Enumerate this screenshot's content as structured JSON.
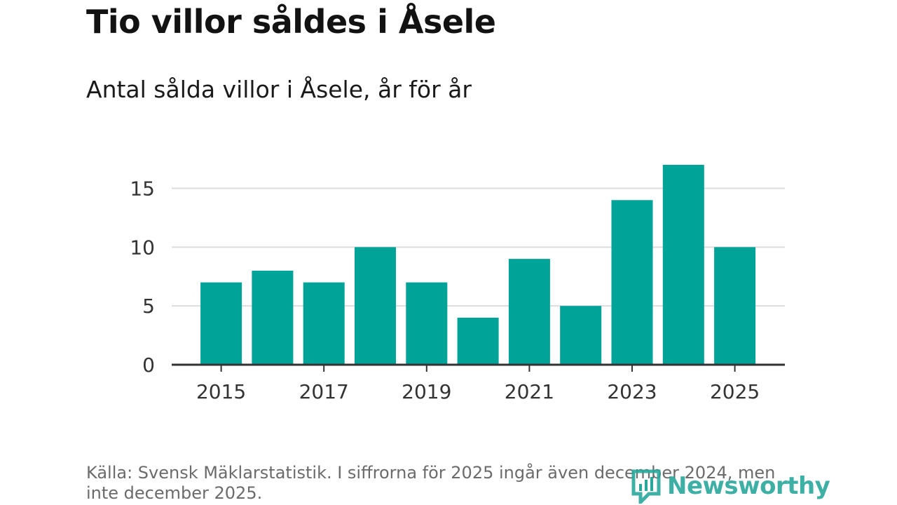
{
  "header": {
    "title": "Tio villor såldes i Åsele",
    "subtitle": "Antal sålda villor i Åsele, år för år"
  },
  "footer": {
    "source": "Källa: Svensk Mäklarstatistik. I siffrorna för 2025 ingår även december 2024, men inte december 2025.",
    "brand": "Newsworthy"
  },
  "colors": {
    "bar": "#00a398",
    "grid": "#dddddd",
    "axis": "#333333"
  },
  "chart_data": {
    "type": "bar",
    "title": "Tio villor såldes i Åsele",
    "subtitle": "Antal sålda villor i Åsele, år för år",
    "xlabel": "",
    "ylabel": "",
    "categories": [
      "2015",
      "2016",
      "2017",
      "2018",
      "2019",
      "2020",
      "2021",
      "2022",
      "2023",
      "2024",
      "2025"
    ],
    "values": [
      7,
      8,
      7,
      10,
      7,
      4,
      9,
      5,
      14,
      17,
      10
    ],
    "x_tick_labels": [
      "2015",
      "2017",
      "2019",
      "2021",
      "2023",
      "2025"
    ],
    "y_ticks": [
      0,
      5,
      10,
      15
    ],
    "ylim": [
      0,
      17
    ],
    "grid": true
  }
}
